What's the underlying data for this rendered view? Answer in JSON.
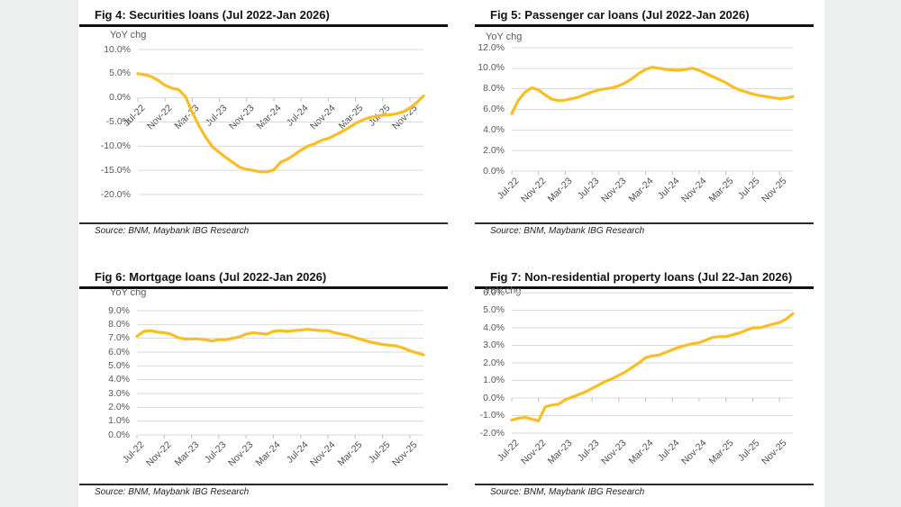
{
  "page": {
    "background_color": "#eef0ef",
    "paper_color": "#ffffff",
    "gridline_color": "#D9D9D9",
    "tick_color": "#BFBFBF",
    "axis_text_color": "#595959"
  },
  "chart_data": [
    {
      "type": "line",
      "title": "Fig 4: Securities loans (Jul 2022-Jan 2026)",
      "ylabel": "YoY chg",
      "source": "Source: BNM, Maybank IBG Research",
      "line_color": "#F9BE25",
      "grid": true,
      "legend_position": "none",
      "ylim": [
        -20,
        10
      ],
      "y_ticks": [
        10,
        5,
        0,
        -5,
        -10,
        -15,
        -20
      ],
      "x_tick_labels": [
        "Jul-22",
        "Nov-22",
        "Mar-23",
        "Jul-23",
        "Nov-23",
        "Mar-24",
        "Jul-24",
        "Nov-24",
        "Mar-25",
        "Jul-25",
        "Nov-25"
      ],
      "x_label_position": "zero-line",
      "values": [
        5.0,
        4.8,
        4.4,
        3.6,
        2.6,
        2.0,
        1.7,
        0.3,
        -3.0,
        -5.8,
        -8.2,
        -10.2,
        -11.3,
        -12.4,
        -13.4,
        -14.4,
        -14.8,
        -15.0,
        -15.3,
        -15.3,
        -14.9,
        -13.3,
        -12.7,
        -11.8,
        -10.8,
        -10.0,
        -9.5,
        -8.8,
        -8.4,
        -7.7,
        -7.0,
        -6.2,
        -5.3,
        -4.6,
        -4.1,
        -3.8,
        -3.6,
        -3.5,
        -3.3,
        -2.9,
        -2.1,
        -1.0,
        0.4
      ]
    },
    {
      "type": "line",
      "title": "Fig 5: Passenger car loans (Jul 2022-Jan 2026)",
      "ylabel": "YoY chg",
      "source": "Source: BNM, Maybank IBG Research",
      "line_color": "#F9BE25",
      "grid": true,
      "legend_position": "none",
      "ylim": [
        0,
        12
      ],
      "y_ticks": [
        12,
        10,
        8,
        6,
        4,
        2,
        0
      ],
      "x_tick_labels": [
        "Jul-22",
        "Nov-22",
        "Mar-23",
        "Jul-23",
        "Nov-23",
        "Mar-24",
        "Jul-24",
        "Nov-24",
        "Mar-25",
        "Jul-25",
        "Nov-25"
      ],
      "x_label_position": "bottom",
      "values": [
        5.6,
        6.9,
        7.7,
        8.1,
        7.9,
        7.4,
        7.0,
        6.85,
        6.9,
        7.05,
        7.2,
        7.45,
        7.7,
        7.9,
        8.0,
        8.1,
        8.3,
        8.6,
        9.0,
        9.5,
        9.9,
        10.1,
        10.0,
        9.9,
        9.85,
        9.8,
        9.9,
        10.0,
        9.8,
        9.5,
        9.2,
        8.9,
        8.6,
        8.2,
        7.9,
        7.7,
        7.5,
        7.35,
        7.25,
        7.15,
        7.05,
        7.1,
        7.25
      ]
    },
    {
      "type": "line",
      "title": "Fig 6: Mortgage loans (Jul 2022-Jan 2026)",
      "ylabel": "YoY chg",
      "source": "Source: BNM, Maybank IBG Research",
      "line_color": "#F9BE25",
      "grid": true,
      "legend_position": "none",
      "ylim": [
        0,
        9
      ],
      "y_ticks": [
        9,
        8,
        7,
        6,
        5,
        4,
        3,
        2,
        1,
        0
      ],
      "x_tick_labels": [
        "Jul-22",
        "Nov-22",
        "Mar-23",
        "Jul-23",
        "Nov-23",
        "Mar-24",
        "Jul-24",
        "Nov-24",
        "Mar-25",
        "Jul-25",
        "Nov-25"
      ],
      "x_label_position": "bottom",
      "values": [
        7.15,
        7.5,
        7.55,
        7.45,
        7.4,
        7.3,
        7.05,
        6.95,
        6.95,
        6.95,
        6.9,
        6.8,
        6.9,
        6.9,
        7.0,
        7.1,
        7.3,
        7.4,
        7.35,
        7.3,
        7.5,
        7.55,
        7.5,
        7.55,
        7.6,
        7.65,
        7.6,
        7.55,
        7.55,
        7.4,
        7.3,
        7.2,
        7.05,
        6.9,
        6.75,
        6.65,
        6.55,
        6.5,
        6.45,
        6.3,
        6.1,
        5.95,
        5.8
      ]
    },
    {
      "type": "line",
      "title": "Fig 7: Non-residential property loans (Jul 22-Jan 2026)",
      "ylabel": "YoY chg",
      "source": "Source: BNM, Maybank IBG Research",
      "line_color": "#F9BE25",
      "grid": true,
      "legend_position": "none",
      "ylim": [
        -2,
        6
      ],
      "y_ticks": [
        6,
        5,
        4,
        3,
        2,
        1,
        0,
        -1,
        -2
      ],
      "x_tick_labels": [
        "Jul-22",
        "Nov-22",
        "Mar-23",
        "Jul-23",
        "Nov-23",
        "Mar-24",
        "Jul-24",
        "Nov-24",
        "Mar-25",
        "Jul-25",
        "Nov-25"
      ],
      "x_label_position": "bottom",
      "values": [
        -1.25,
        -1.15,
        -1.1,
        -1.2,
        -1.3,
        -0.5,
        -0.4,
        -0.35,
        -0.1,
        0.05,
        0.2,
        0.35,
        0.55,
        0.75,
        0.95,
        1.1,
        1.3,
        1.5,
        1.75,
        2.0,
        2.3,
        2.4,
        2.45,
        2.6,
        2.75,
        2.9,
        3.0,
        3.1,
        3.15,
        3.3,
        3.45,
        3.5,
        3.5,
        3.6,
        3.7,
        3.85,
        4.0,
        4.0,
        4.1,
        4.2,
        4.3,
        4.5,
        4.8
      ]
    }
  ]
}
